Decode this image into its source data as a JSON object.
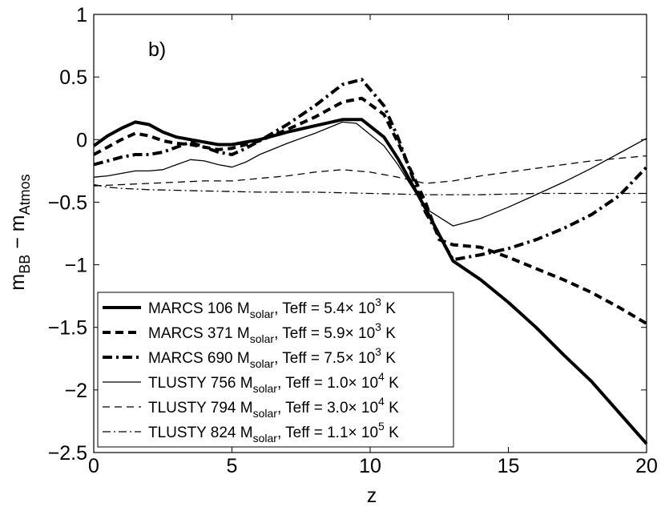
{
  "chart_data": {
    "type": "line",
    "panel_label": "b)",
    "xlabel": "z",
    "ylabel_main": "m",
    "ylabel_sub1": "BB",
    "ylabel_mid": " − m",
    "ylabel_sub2": "Atmos",
    "xlim": [
      0,
      20
    ],
    "ylim": [
      -2.5,
      1
    ],
    "xticks": [
      0,
      5,
      10,
      15,
      20
    ],
    "xtick_labels": [
      "0",
      "5",
      "10",
      "15",
      "20"
    ],
    "yticks": [
      -2.5,
      -2,
      -1.5,
      -1,
      -0.5,
      0,
      0.5,
      1
    ],
    "ytick_labels": [
      "−2.5",
      "−2",
      "−1.5",
      "−1",
      "−0.5",
      "0",
      "0.5",
      "1"
    ],
    "legend_position": "bottom-left",
    "series": [
      {
        "name": "MARCS 106",
        "legend": {
          "prefix": "MARCS 106 M",
          "sub": "solar",
          "mid": ", Teff = 5.4",
          "exp": "3",
          "suffix": " K"
        },
        "style": "thick-solid",
        "x": [
          0,
          0.5,
          1,
          1.5,
          2,
          2.5,
          3,
          3.5,
          4,
          4.5,
          5,
          5.5,
          6,
          7,
          8,
          9,
          9.7,
          10.5,
          11,
          12,
          13,
          14,
          15,
          16,
          17,
          18,
          19,
          20
        ],
        "y": [
          -0.05,
          0.03,
          0.09,
          0.14,
          0.12,
          0.06,
          0.02,
          0.0,
          -0.02,
          -0.04,
          -0.04,
          -0.02,
          0.0,
          0.06,
          0.11,
          0.16,
          0.16,
          0.02,
          -0.15,
          -0.55,
          -0.97,
          -1.12,
          -1.3,
          -1.5,
          -1.72,
          -1.93,
          -2.18,
          -2.43
        ]
      },
      {
        "name": "MARCS 371",
        "legend": {
          "prefix": "MARCS 371 M",
          "sub": "solar",
          "mid": ", Teff = 5.9",
          "exp": "3",
          "suffix": " K"
        },
        "style": "thick-dashed",
        "x": [
          0,
          0.5,
          1,
          1.5,
          2,
          2.5,
          3,
          3.5,
          4,
          4.5,
          5,
          5.5,
          6,
          7,
          8,
          9,
          9.7,
          10.5,
          11,
          12,
          12.5,
          13,
          14,
          15,
          16,
          17,
          18,
          19,
          20
        ],
        "y": [
          -0.12,
          -0.06,
          0.0,
          0.05,
          0.03,
          -0.01,
          -0.03,
          -0.04,
          -0.06,
          -0.08,
          -0.07,
          -0.04,
          -0.01,
          0.08,
          0.18,
          0.3,
          0.33,
          0.2,
          -0.02,
          -0.5,
          -0.8,
          -0.84,
          -0.86,
          -0.94,
          -1.03,
          -1.12,
          -1.22,
          -1.34,
          -1.47
        ]
      },
      {
        "name": "MARCS 690",
        "legend": {
          "prefix": "MARCS 690 M",
          "sub": "solar",
          "mid": ", Teff = 7.5",
          "exp": "3",
          "suffix": " K"
        },
        "style": "thick-dashdot",
        "x": [
          0,
          0.5,
          1,
          1.5,
          2,
          2.5,
          3,
          3.5,
          4,
          4.5,
          5,
          5.5,
          6,
          7,
          8,
          9,
          9.7,
          10.5,
          11,
          12,
          13,
          14,
          15,
          16,
          17,
          18,
          19,
          20
        ],
        "y": [
          -0.2,
          -0.17,
          -0.14,
          -0.12,
          -0.12,
          -0.1,
          -0.06,
          -0.02,
          -0.06,
          -0.1,
          -0.12,
          -0.07,
          -0.01,
          0.12,
          0.27,
          0.44,
          0.48,
          0.27,
          0.02,
          -0.58,
          -0.96,
          -0.92,
          -0.87,
          -0.8,
          -0.71,
          -0.6,
          -0.45,
          -0.22
        ]
      },
      {
        "name": "TLUSTY 756",
        "legend": {
          "prefix": "TLUSTY 756 M",
          "sub": "solar",
          "mid": ", Teff = 1.0",
          "exp": "4",
          "suffix": " K"
        },
        "style": "thin-solid",
        "x": [
          0,
          0.5,
          1,
          1.5,
          2,
          2.5,
          3,
          3.5,
          4,
          4.5,
          5,
          5.5,
          6,
          7,
          8,
          9,
          9.5,
          10.5,
          11,
          12,
          13,
          14,
          15,
          16,
          17,
          18,
          19,
          20
        ],
        "y": [
          -0.3,
          -0.29,
          -0.27,
          -0.25,
          -0.25,
          -0.24,
          -0.2,
          -0.16,
          -0.17,
          -0.2,
          -0.22,
          -0.18,
          -0.12,
          -0.03,
          0.05,
          0.14,
          0.13,
          -0.05,
          -0.2,
          -0.55,
          -0.69,
          -0.63,
          -0.54,
          -0.44,
          -0.34,
          -0.23,
          -0.11,
          0.01
        ]
      },
      {
        "name": "TLUSTY 794",
        "legend": {
          "prefix": "TLUSTY 794 M",
          "sub": "solar",
          "mid": ", Teff = 3.0",
          "exp": "4",
          "suffix": " K"
        },
        "style": "thin-dashed",
        "x": [
          0,
          1,
          2,
          3,
          4,
          5,
          6,
          7,
          8,
          9,
          10,
          11,
          12,
          13,
          14,
          15,
          16,
          17,
          18,
          19,
          20
        ],
        "y": [
          -0.37,
          -0.36,
          -0.35,
          -0.34,
          -0.33,
          -0.33,
          -0.31,
          -0.29,
          -0.26,
          -0.24,
          -0.26,
          -0.3,
          -0.35,
          -0.33,
          -0.29,
          -0.26,
          -0.23,
          -0.2,
          -0.17,
          -0.15,
          -0.13
        ]
      },
      {
        "name": "TLUSTY 824",
        "legend": {
          "prefix": "TLUSTY 824 M",
          "sub": "solar",
          "mid": ", Teff = 1.1",
          "exp": "5",
          "suffix": " K"
        },
        "style": "thin-dashdot",
        "x": [
          0,
          0.5,
          1,
          2,
          4,
          6,
          8,
          10,
          12,
          14,
          16,
          18,
          20
        ],
        "y": [
          -0.36,
          -0.38,
          -0.39,
          -0.4,
          -0.41,
          -0.42,
          -0.42,
          -0.43,
          -0.44,
          -0.44,
          -0.43,
          -0.43,
          -0.43
        ]
      }
    ]
  }
}
